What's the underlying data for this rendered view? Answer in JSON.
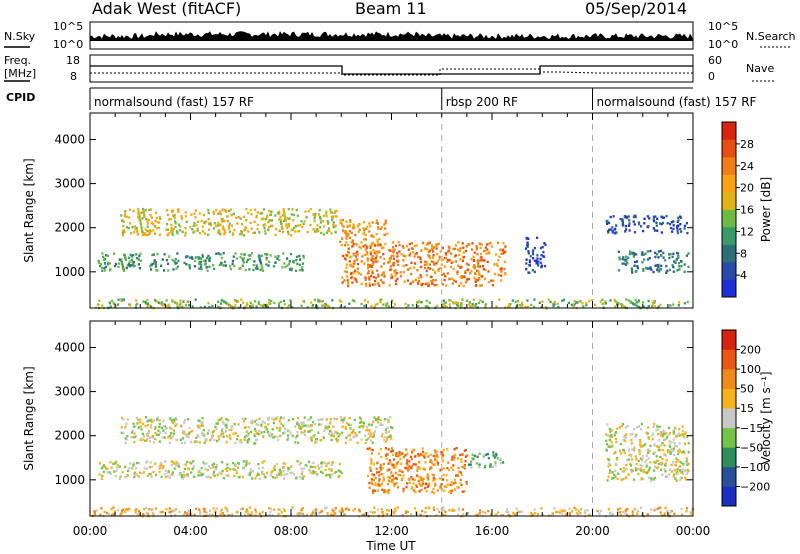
{
  "header": {
    "site": "Adak West (fitACF)",
    "beam": "Beam 11",
    "date": "05/Sep/2014"
  },
  "nsky_panel": {
    "left_label": "N.Sky",
    "right_label": "N.Search",
    "left_ticks": [
      "10^5",
      "10^0"
    ],
    "right_ticks": [
      "10^5",
      "10^0"
    ]
  },
  "freq_panel": {
    "left_label_1": "Freq.",
    "left_label_2": "[MHz]",
    "left_ticks": [
      "18",
      "8"
    ],
    "right_label": "Nave",
    "right_ticks": [
      "60",
      "0"
    ]
  },
  "cpid_panel": {
    "label": "CPID",
    "segments": [
      {
        "name": "normalsound (fast) 157 RF",
        "start_h": 0,
        "end_h": 14
      },
      {
        "name": "rbsp 200 RF",
        "start_h": 14,
        "end_h": 20
      },
      {
        "name": "normalsound (fast) 157 RF",
        "start_h": 20,
        "end_h": 24
      }
    ]
  },
  "chart_data": [
    {
      "type": "heatmap",
      "name": "power",
      "ylabel": "Slant Range [km]",
      "yticks": [
        1000,
        2000,
        3000,
        4000
      ],
      "ylim": [
        180,
        4600
      ],
      "xlim_h": [
        0,
        24
      ],
      "colorbar": {
        "label": "Power [dB]",
        "ticks": [
          "4",
          "8",
          "12",
          "16",
          "20",
          "24",
          "28"
        ],
        "colors": [
          "#1f2fd8",
          "#2a4aa8",
          "#2e6e7a",
          "#3a9a68",
          "#6dbb45",
          "#e2b317",
          "#f7a213",
          "#f07d15",
          "#e64f12",
          "#d82512"
        ]
      },
      "regions": [
        {
          "t0": 1.2,
          "t1": 9.8,
          "r0": 1850,
          "r1": 2450,
          "level": 5
        },
        {
          "t0": 0.3,
          "t1": 8.5,
          "r0": 1050,
          "r1": 1450,
          "level": 3
        },
        {
          "t0": 9.9,
          "t1": 11.8,
          "r0": 1600,
          "r1": 2200,
          "level": 6
        },
        {
          "t0": 10.0,
          "t1": 16.5,
          "r0": 700,
          "r1": 1700,
          "level": 7
        },
        {
          "t0": 21.0,
          "t1": 23.8,
          "r0": 1000,
          "r1": 1500,
          "level": 2
        },
        {
          "t0": 20.5,
          "t1": 23.8,
          "r0": 1900,
          "r1": 2300,
          "level": 1
        },
        {
          "t0": 17.3,
          "t1": 18.1,
          "r0": 1000,
          "r1": 1800,
          "level": 1
        },
        {
          "t0": 0.0,
          "t1": 24.0,
          "r0": 200,
          "r1": 400,
          "level": 4
        }
      ]
    },
    {
      "type": "heatmap",
      "name": "velocity",
      "ylabel": "Slant Range [km]",
      "yticks": [
        1000,
        2000,
        3000,
        4000
      ],
      "ylim": [
        180,
        4600
      ],
      "xlim_h": [
        0,
        24
      ],
      "xticks": [
        "00:00",
        "04:00",
        "08:00",
        "12:00",
        "16:00",
        "20:00",
        "00:00"
      ],
      "xlabel": "Time UT",
      "colorbar": {
        "label": "Velocity [m s⁻¹]",
        "ticks": [
          "200",
          "100",
          "50",
          "15",
          "−15",
          "−50",
          "−100",
          "−200"
        ],
        "colors": [
          "#1a2fbf",
          "#2a4f9a",
          "#2e8f5a",
          "#75c44a",
          "#c8c8c4",
          "#f6b21c",
          "#f08a18",
          "#ea5715",
          "#d62210"
        ]
      },
      "regions": [
        {
          "t0": 1.2,
          "t1": 12.0,
          "r0": 1850,
          "r1": 2450,
          "level": 4
        },
        {
          "t0": 0.3,
          "t1": 10.0,
          "r0": 1050,
          "r1": 1450,
          "level": 4
        },
        {
          "t0": 11.0,
          "t1": 15.0,
          "r0": 700,
          "r1": 1750,
          "level": 6
        },
        {
          "t0": 15.0,
          "t1": 16.4,
          "r0": 1300,
          "r1": 1650,
          "level": 3
        },
        {
          "t0": 20.5,
          "t1": 23.8,
          "r0": 1000,
          "r1": 2300,
          "level": 4
        },
        {
          "t0": 0.0,
          "t1": 24.0,
          "r0": 200,
          "r1": 400,
          "level": 5
        }
      ]
    }
  ]
}
